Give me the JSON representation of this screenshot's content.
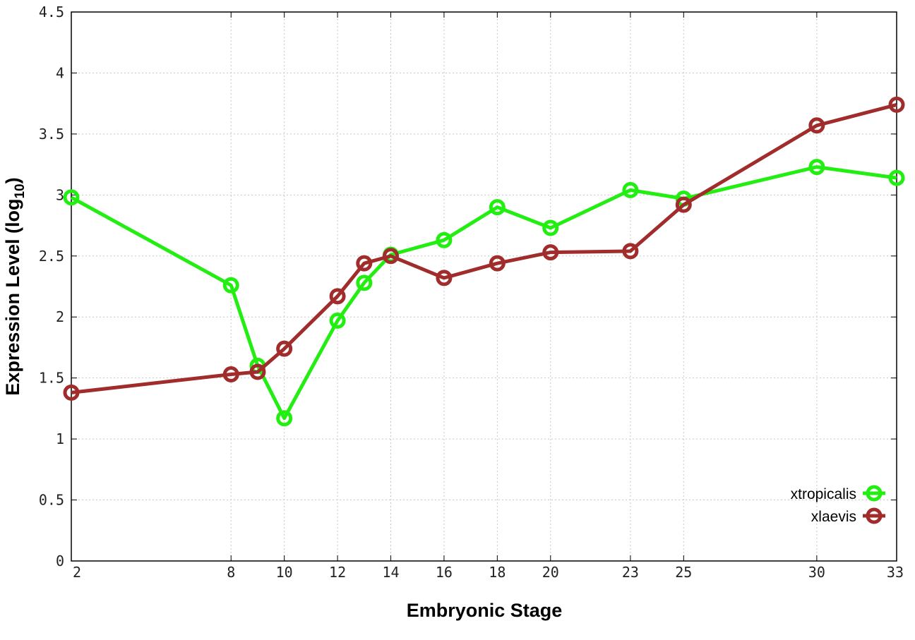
{
  "chart_data": {
    "type": "line",
    "xlabel": "Embryonic Stage",
    "ylabel_main": "Expression Level (log",
    "ylabel_sub": "10",
    "ylabel_close": ")",
    "x_ticks": [
      2,
      8,
      10,
      12,
      14,
      16,
      18,
      20,
      23,
      25,
      30,
      33
    ],
    "x_tick_labels": [
      "2",
      "8",
      "10",
      "12",
      "14",
      "16",
      "18",
      "20",
      "23",
      "25",
      "30",
      "33"
    ],
    "y_ticks": [
      0,
      0.5,
      1,
      1.5,
      2,
      2.5,
      3,
      3.5,
      4,
      4.5
    ],
    "y_tick_labels": [
      "0",
      "0.5",
      "1",
      "1.5",
      "2",
      "2.5",
      "3",
      "3.5",
      "4",
      "4.5"
    ],
    "ylim": [
      0,
      4.5
    ],
    "xlim": [
      2,
      33
    ],
    "grid": true,
    "legend_position": "bottom-right",
    "series": [
      {
        "name": "xtropicalis",
        "color": "#22ee11",
        "x": [
          2,
          8,
          9,
          10,
          12,
          13,
          14,
          16,
          18,
          20,
          23,
          25,
          30,
          33
        ],
        "values": [
          2.98,
          2.26,
          1.6,
          1.17,
          1.97,
          2.28,
          2.51,
          2.63,
          2.9,
          2.73,
          3.04,
          2.97,
          3.23,
          3.14
        ]
      },
      {
        "name": "xlaevis",
        "color": "#a02c2c",
        "x": [
          2,
          8,
          9,
          10,
          12,
          13,
          14,
          16,
          18,
          20,
          23,
          25,
          30,
          33
        ],
        "values": [
          1.38,
          1.53,
          1.55,
          1.74,
          2.17,
          2.44,
          2.5,
          2.32,
          2.44,
          2.53,
          2.54,
          2.92,
          3.57,
          3.74
        ]
      }
    ]
  }
}
